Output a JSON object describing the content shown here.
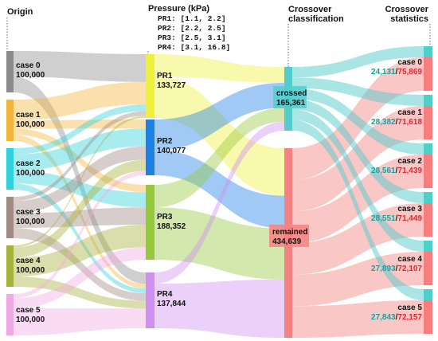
{
  "headers": {
    "origin": "Origin",
    "pressure": "Pressure (kPa)",
    "crossover": [
      "Crossover",
      "classification"
    ],
    "statistics": [
      "Crossover",
      "statistics"
    ]
  },
  "pressure_ranges": [
    "PR1: [1.1, 2.2]",
    "PR2: [2.2, 2.5]",
    "PR3: [2.5, 3.1]",
    "PR4: [3.1, 16.8]"
  ],
  "colors": {
    "case0": "#8c8c8c",
    "case1": "#f0b53a",
    "case2": "#2fd2dc",
    "case3": "#a08a83",
    "case4": "#a6b13c",
    "case5": "#f0a9e3",
    "PR1": "#eef03a",
    "PR2": "#1c80e6",
    "PR3": "#95c93c",
    "PR4": "#cf8ff0",
    "crossed": "#55cccc",
    "remained": "#f58282",
    "stat_crossed": "#50cfc9",
    "stat_remained": "#f67e7e"
  },
  "nodes": {
    "origin": [
      {
        "id": "case0",
        "label": "case 0",
        "value": "100,000"
      },
      {
        "id": "case1",
        "label": "case 1",
        "value": "100,000"
      },
      {
        "id": "case2",
        "label": "case 2",
        "value": "100,000"
      },
      {
        "id": "case3",
        "label": "case 3",
        "value": "100,000"
      },
      {
        "id": "case4",
        "label": "case 4",
        "value": "100,000"
      },
      {
        "id": "case5",
        "label": "case 5",
        "value": "100,000"
      }
    ],
    "pressure": [
      {
        "id": "PR1",
        "label": "PR1",
        "value": "133,727"
      },
      {
        "id": "PR2",
        "label": "PR2",
        "value": "140,077"
      },
      {
        "id": "PR3",
        "label": "PR3",
        "value": "188,352"
      },
      {
        "id": "PR4",
        "label": "PR4",
        "value": "137,844"
      }
    ],
    "classification": [
      {
        "id": "crossed",
        "label": "crossed",
        "value": "165,361"
      },
      {
        "id": "remained",
        "label": "remained",
        "value": "434,639"
      }
    ],
    "statistics": [
      {
        "id": "s0",
        "label": "case 0",
        "crossed": "24,131",
        "remained": "75,869"
      },
      {
        "id": "s1",
        "label": "case 1",
        "crossed": "28,382",
        "remained": "71,618"
      },
      {
        "id": "s2",
        "label": "case 2",
        "crossed": "28,561",
        "remained": "71,439"
      },
      {
        "id": "s3",
        "label": "case 3",
        "crossed": "28,551",
        "remained": "71,449"
      },
      {
        "id": "s4",
        "label": "case 4",
        "crossed": "27,893",
        "remained": "72,107"
      },
      {
        "id": "s5",
        "label": "case 5",
        "crossed": "27,843",
        "remained": "72,157"
      }
    ]
  }
}
